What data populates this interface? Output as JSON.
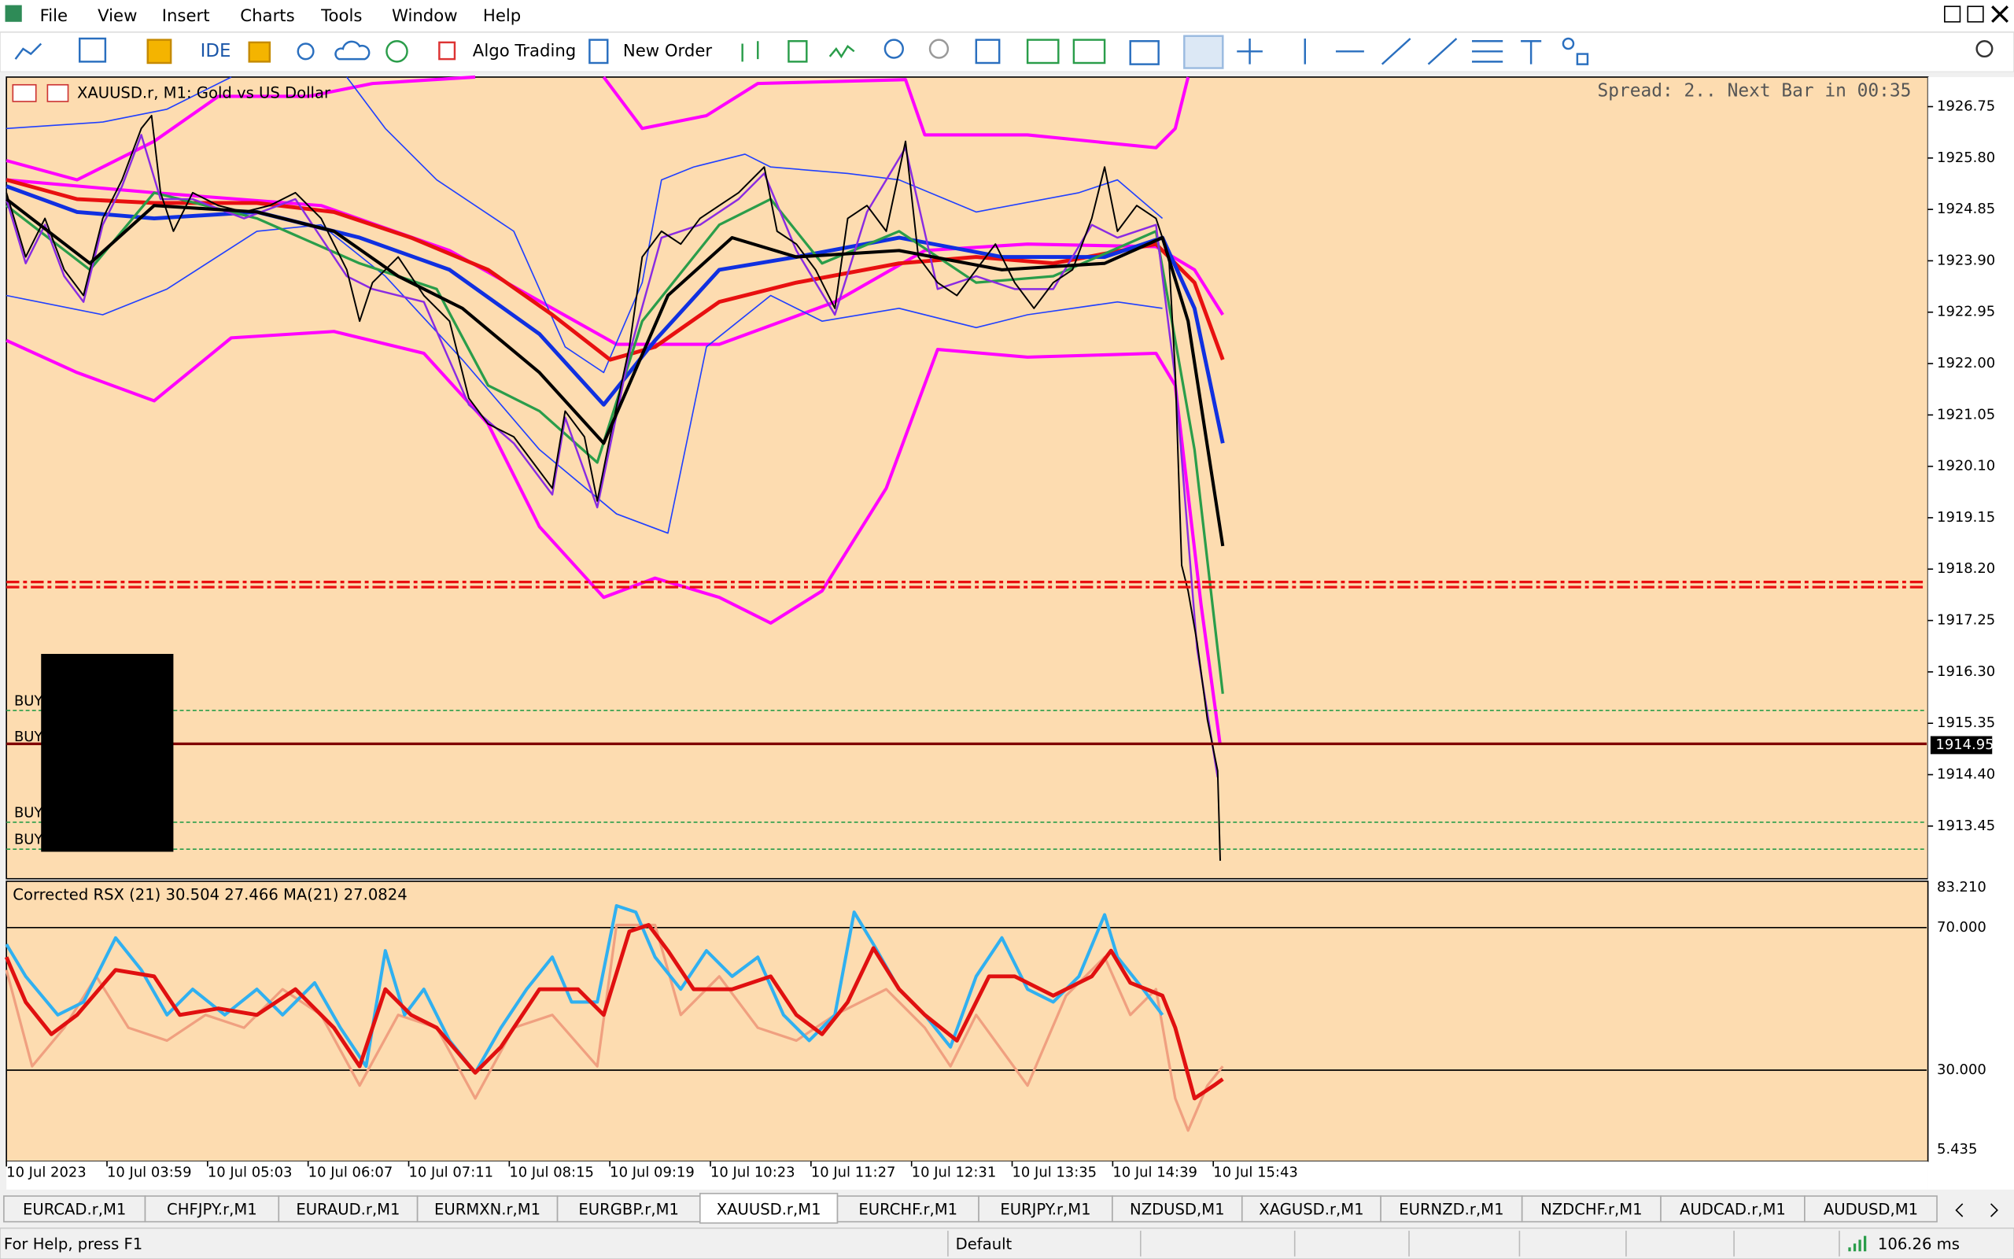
{
  "menu": [
    "File",
    "View",
    "Insert",
    "Charts",
    "Tools",
    "Window",
    "Help"
  ],
  "toolbar": {
    "ide": "IDE",
    "algo_trading": "Algo Trading",
    "new_order": "New Order"
  },
  "chart": {
    "symbol": "XAUUSD.r, M1:  Gold vs US Dollar",
    "spread": "Spread: 2.. Next Bar in 00:35",
    "price_labels": [
      "1926.75",
      "1925.80",
      "1924.85",
      "1923.90",
      "1922.95",
      "1922.00",
      "1921.05",
      "1920.10",
      "1919.15",
      "1918.20",
      "1917.25",
      "1916.30",
      "1915.35",
      "1914.40",
      "1913.45"
    ],
    "current_price": "1914.95",
    "order_labels": [
      "BUY",
      "BUY",
      "BUY",
      "BUY"
    ],
    "time_labels": [
      "10 Jul 2023",
      "10 Jul 03:59",
      "10 Jul 05:03",
      "10 Jul 06:07",
      "10 Jul 07:11",
      "10 Jul 08:15",
      "10 Jul 09:19",
      "10 Jul 10:23",
      "10 Jul 11:27",
      "10 Jul 12:31",
      "10 Jul 13:35",
      "10 Jul 14:39",
      "10 Jul 15:43"
    ]
  },
  "indicator": {
    "label": "Corrected RSX (21) 30.504 27.466 MA(21) 27.0824",
    "levels": [
      "83.210",
      "70.000",
      "30.000",
      "5.435"
    ]
  },
  "tabs": [
    "EURCAD.r,M1",
    "CHFJPY.r,M1",
    "EURAUD.r,M1",
    "EURMXN.r,M1",
    "EURGBP.r,M1",
    "XAUUSD.r,M1",
    "EURCHF.r,M1",
    "EURJPY.r,M1",
    "NZDUSD,M1",
    "XAGUSD.r,M1",
    "EURNZD.r,M1",
    "NZDCHF.r,M1",
    "AUDCAD.r,M1",
    "AUDUSD,M1"
  ],
  "active_tab": 5,
  "status": {
    "help": "For Help, press F1",
    "profile": "Default",
    "ping": "106.26 ms"
  }
}
